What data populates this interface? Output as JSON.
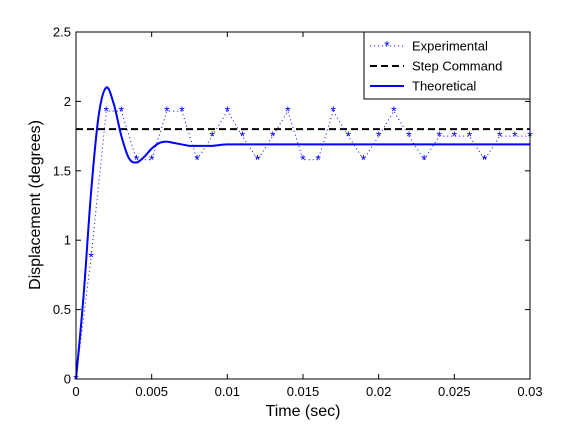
{
  "chart_data": {
    "type": "line",
    "title": "",
    "xlabel": "Time (sec)",
    "ylabel": "Displacement (degrees)",
    "xlim": [
      0,
      0.03
    ],
    "ylim": [
      0,
      2.5
    ],
    "xticks": [
      0,
      0.005,
      0.01,
      0.015,
      0.02,
      0.025,
      0.03
    ],
    "xtick_labels": [
      "0",
      "0.005",
      "0.01",
      "0.015",
      "0.02",
      "0.025",
      "0.03"
    ],
    "yticks": [
      0,
      0.5,
      1,
      1.5,
      2,
      2.5
    ],
    "ytick_labels": [
      "0",
      "0.5",
      "1",
      "1.5",
      "2",
      "2.5"
    ],
    "grid": false,
    "legend_position": "top-right",
    "series": [
      {
        "name": "Experimental",
        "style": "dotted-star",
        "color": "#0000FF",
        "x": [
          0,
          0.001,
          0.002,
          0.003,
          0.004,
          0.005,
          0.006,
          0.007,
          0.008,
          0.009,
          0.01,
          0.011,
          0.012,
          0.013,
          0.014,
          0.015,
          0.016,
          0.017,
          0.018,
          0.019,
          0.02,
          0.021,
          0.022,
          0.023,
          0.024,
          0.025,
          0.026,
          0.027,
          0.028,
          0.029,
          0.03
        ],
        "y": [
          0,
          0.88,
          1.93,
          1.93,
          1.58,
          1.58,
          1.93,
          1.93,
          1.58,
          1.75,
          1.93,
          1.75,
          1.58,
          1.75,
          1.93,
          1.58,
          1.58,
          1.93,
          1.75,
          1.58,
          1.75,
          1.93,
          1.75,
          1.58,
          1.75,
          1.75,
          1.75,
          1.58,
          1.75,
          1.75,
          1.75
        ]
      },
      {
        "name": "Step Command",
        "style": "dashed",
        "color": "#000000",
        "x": [
          0,
          0.03
        ],
        "y": [
          1.8,
          1.8
        ]
      },
      {
        "name": "Theoretical",
        "style": "solid",
        "color": "#0000FF",
        "x": [
          0,
          0.0005,
          0.001,
          0.0015,
          0.002,
          0.0025,
          0.003,
          0.0035,
          0.004,
          0.0045,
          0.005,
          0.0055,
          0.006,
          0.0065,
          0.007,
          0.0075,
          0.008,
          0.009,
          0.01,
          0.012,
          0.015,
          0.02,
          0.025,
          0.03
        ],
        "y": [
          0,
          0.6,
          1.35,
          1.9,
          2.1,
          1.98,
          1.75,
          1.59,
          1.56,
          1.6,
          1.66,
          1.7,
          1.71,
          1.7,
          1.69,
          1.68,
          1.68,
          1.68,
          1.69,
          1.69,
          1.69,
          1.69,
          1.69,
          1.69
        ]
      }
    ]
  }
}
